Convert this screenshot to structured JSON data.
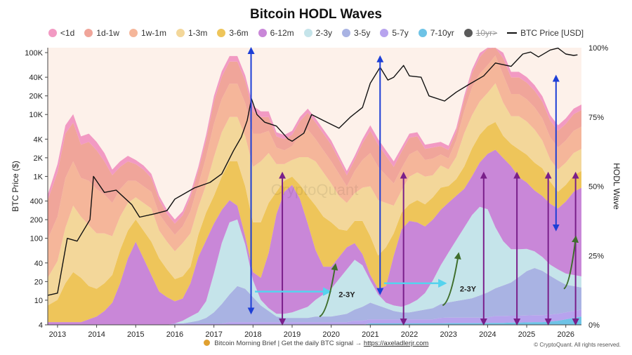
{
  "chart_data": {
    "type": "area",
    "title": "Bitcoin HODL Waves",
    "watermark": "CryptoQuant",
    "left_axis": {
      "label": "BTC Price ($)",
      "scale": "log",
      "ticks": [
        "4",
        "10",
        "20",
        "40",
        "100",
        "200",
        "400",
        "1K",
        "2K",
        "4K",
        "10K",
        "20K",
        "40K",
        "100K"
      ],
      "tick_values": [
        4,
        10,
        20,
        40,
        100,
        200,
        400,
        1000,
        2000,
        4000,
        10000,
        20000,
        40000,
        100000
      ],
      "range": [
        4,
        120000
      ]
    },
    "right_axis": {
      "label": "HODL Wave",
      "ticks": [
        "0%",
        "25%",
        "50%",
        "75%",
        "100%"
      ],
      "tick_values": [
        0,
        25,
        50,
        75,
        100
      ],
      "range": [
        0,
        100
      ]
    },
    "x_axis": {
      "ticks": [
        "2013",
        "2014",
        "2015",
        "2016",
        "2017",
        "2018",
        "2019",
        "2020",
        "2021",
        "2022",
        "2023",
        "2024",
        "2025",
        "2026"
      ],
      "tick_values": [
        2013,
        2014,
        2015,
        2016,
        2017,
        2018,
        2019,
        2020,
        2021,
        2022,
        2023,
        2024,
        2025,
        2026
      ],
      "range": [
        2012.75,
        2026.4
      ]
    },
    "legend_placement": "top",
    "legend": [
      {
        "label": "<1d",
        "color": "#f29ac3"
      },
      {
        "label": "1d-1w",
        "color": "#f0a59a"
      },
      {
        "label": "1w-1m",
        "color": "#f5b69a"
      },
      {
        "label": "1-3m",
        "color": "#f3d79a"
      },
      {
        "label": "3-6m",
        "color": "#eec55a"
      },
      {
        "label": "6-12m",
        "color": "#c987d8"
      },
      {
        "label": "2-3y",
        "color": "#c5e4ea"
      },
      {
        "label": "3-5y",
        "color": "#a9b3e3"
      },
      {
        "label": "5-7y",
        "color": "#b7a3ee"
      },
      {
        "label": "7-10yr",
        "color": "#6ec3e6"
      },
      {
        "label": "10yr>",
        "color": "#5a5a5a",
        "strikethrough": true
      },
      {
        "label": "BTC Price [USD]",
        "color": "#111111",
        "line": true
      }
    ],
    "price_series": {
      "name": "BTC Price [USD]",
      "color": "#111111",
      "x": [
        2012.75,
        2013.0,
        2013.25,
        2013.5,
        2013.83,
        2013.92,
        2014.2,
        2014.5,
        2014.9,
        2015.1,
        2015.5,
        2015.8,
        2016.0,
        2016.5,
        2016.9,
        2017.2,
        2017.5,
        2017.7,
        2017.85,
        2017.96,
        2018.1,
        2018.3,
        2018.6,
        2018.9,
        2019.0,
        2019.3,
        2019.5,
        2019.8,
        2020.2,
        2020.5,
        2020.8,
        2021.0,
        2021.25,
        2021.45,
        2021.6,
        2021.85,
        2022.0,
        2022.3,
        2022.5,
        2022.9,
        2023.2,
        2023.5,
        2023.9,
        2024.2,
        2024.6,
        2024.9,
        2025.1,
        2025.3,
        2025.6,
        2025.8,
        2026.0,
        2026.2,
        2026.3
      ],
      "values": [
        12,
        13,
        100,
        90,
        200,
        1000,
        550,
        600,
        350,
        220,
        250,
        280,
        430,
        650,
        800,
        1100,
        2600,
        4300,
        8000,
        18000,
        10000,
        7500,
        6500,
        4000,
        3700,
        5000,
        10000,
        8000,
        6000,
        9200,
        13000,
        32000,
        58000,
        36000,
        40000,
        62000,
        42000,
        40000,
        20000,
        16500,
        23000,
        30000,
        42000,
        68000,
        60000,
        95000,
        102000,
        85000,
        110000,
        118000,
        95000,
        90000,
        92000
      ]
    },
    "hodl_bands": {
      "x": [
        2012.75,
        2013.0,
        2013.2,
        2013.4,
        2013.6,
        2013.8,
        2014.0,
        2014.2,
        2014.4,
        2014.6,
        2014.8,
        2015.0,
        2015.2,
        2015.4,
        2015.6,
        2015.8,
        2016.0,
        2016.2,
        2016.4,
        2016.6,
        2016.8,
        2017.0,
        2017.2,
        2017.4,
        2017.6,
        2017.8,
        2018.0,
        2018.2,
        2018.4,
        2018.6,
        2018.8,
        2019.0,
        2019.2,
        2019.4,
        2019.6,
        2019.8,
        2020.0,
        2020.2,
        2020.4,
        2020.6,
        2020.8,
        2021.0,
        2021.2,
        2021.4,
        2021.6,
        2021.8,
        2022.0,
        2022.2,
        2022.4,
        2022.6,
        2022.8,
        2023.0,
        2023.2,
        2023.4,
        2023.6,
        2023.8,
        2024.0,
        2024.2,
        2024.4,
        2024.6,
        2024.8,
        2025.0,
        2025.2,
        2025.4,
        2025.6,
        2025.8,
        2026.0,
        2026.2,
        2026.4
      ],
      "series": [
        {
          "name": "7-10yr",
          "values": [
            0,
            0,
            0,
            0,
            0,
            0,
            0,
            0,
            0,
            0,
            0,
            0,
            0,
            0,
            0,
            0,
            0,
            0,
            0,
            0,
            0,
            0,
            0,
            0,
            0,
            0,
            0,
            0,
            0,
            0,
            0,
            0,
            0,
            0,
            0,
            0,
            0,
            0,
            0,
            0,
            0,
            0.5,
            0.5,
            0.5,
            0.5,
            0.5,
            0.5,
            0.5,
            0.5,
            0.5,
            0.5,
            0.6,
            0.6,
            0.6,
            0.6,
            0.6,
            0.7,
            0.7,
            0.7,
            0.8,
            0.8,
            0.9,
            1,
            1,
            1.2,
            1.5,
            2,
            2.5,
            3
          ]
        },
        {
          "name": "5-7y",
          "values": [
            0,
            0,
            0,
            0,
            0,
            0,
            0,
            0,
            0,
            0,
            0,
            0,
            0,
            0,
            0,
            0,
            0.5,
            0.5,
            0.5,
            0.5,
            0.5,
            0.5,
            0.5,
            1,
            1,
            1,
            1,
            1,
            1,
            1,
            1,
            1,
            1,
            1,
            1,
            1,
            1,
            1,
            1,
            1.5,
            1.5,
            1.5,
            1.5,
            1.5,
            1.5,
            1.5,
            1.5,
            1.5,
            1.5,
            1.5,
            2,
            2,
            2,
            2,
            2,
            2,
            2,
            2.5,
            2.5,
            2.5,
            2.5,
            2.5,
            2.5,
            2.5,
            2.5,
            2.5,
            2.5,
            2.5,
            2.5
          ]
        },
        {
          "name": "3-5y",
          "values": [
            0,
            0,
            0,
            0,
            0,
            0,
            0,
            0,
            0,
            0,
            0,
            0,
            0,
            0,
            0,
            0,
            0,
            0,
            0.5,
            1,
            2,
            4,
            7,
            10,
            13,
            12,
            9,
            6,
            4,
            2,
            1.5,
            1.5,
            1.5,
            1.5,
            2,
            2,
            2,
            2.5,
            3,
            4,
            5,
            6,
            5,
            4,
            3,
            2.5,
            2.5,
            3,
            3.5,
            4,
            5,
            5.5,
            6,
            6.5,
            7,
            8,
            9,
            10,
            11,
            12,
            14,
            16,
            17,
            16,
            14,
            12,
            10,
            9,
            8
          ]
        },
        {
          "name": "2-3y",
          "values": [
            0,
            0,
            0,
            0,
            0,
            0,
            0,
            0,
            0,
            0,
            0,
            0,
            0,
            0,
            0,
            0,
            0,
            1,
            2,
            3,
            6,
            14,
            22,
            26,
            24,
            16,
            6,
            2,
            1,
            1,
            1.5,
            2,
            3,
            4,
            6,
            8,
            10,
            13,
            16,
            18,
            15,
            8,
            4,
            2,
            2,
            2,
            3,
            4,
            6,
            10,
            14,
            18,
            22,
            26,
            30,
            32,
            30,
            22,
            16,
            12,
            10,
            8,
            6,
            5,
            4,
            4,
            4,
            4,
            4
          ]
        },
        {
          "name": "6-12m",
          "values": [
            1,
            1,
            1,
            1,
            1,
            2,
            3,
            5,
            8,
            15,
            24,
            30,
            24,
            18,
            12,
            10,
            8,
            8,
            12,
            20,
            22,
            18,
            12,
            8,
            5,
            3,
            3,
            8,
            20,
            36,
            44,
            46,
            40,
            30,
            18,
            10,
            8,
            8,
            8,
            6,
            4,
            2,
            2,
            6,
            18,
            28,
            30,
            28,
            24,
            22,
            20,
            18,
            16,
            14,
            14,
            16,
            20,
            28,
            30,
            30,
            26,
            24,
            22,
            22,
            22,
            22,
            26,
            30,
            32
          ]
        },
        {
          "name": "3-6m",
          "values": [
            6,
            8,
            14,
            18,
            16,
            12,
            10,
            10,
            10,
            12,
            10,
            8,
            10,
            12,
            12,
            10,
            8,
            8,
            6,
            8,
            10,
            10,
            12,
            14,
            16,
            18,
            18,
            20,
            18,
            8,
            4,
            3,
            5,
            10,
            16,
            18,
            16,
            10,
            6,
            8,
            12,
            14,
            12,
            14,
            8,
            6,
            6,
            8,
            8,
            8,
            8,
            6,
            6,
            8,
            10,
            10,
            10,
            10,
            8,
            8,
            10,
            10,
            10,
            10,
            8,
            6,
            6,
            6,
            6
          ]
        },
        {
          "name": "1-3m",
          "values": [
            10,
            14,
            20,
            24,
            22,
            22,
            20,
            18,
            14,
            12,
            10,
            8,
            10,
            12,
            10,
            10,
            10,
            12,
            12,
            10,
            10,
            14,
            16,
            16,
            16,
            18,
            20,
            22,
            18,
            10,
            6,
            6,
            10,
            14,
            16,
            16,
            14,
            12,
            10,
            10,
            12,
            18,
            20,
            16,
            10,
            8,
            10,
            10,
            10,
            8,
            8,
            6,
            8,
            12,
            12,
            12,
            12,
            14,
            12,
            10,
            12,
            12,
            12,
            10,
            8,
            8,
            8,
            8,
            8
          ]
        },
        {
          "name": "1w-1m",
          "values": [
            14,
            16,
            18,
            16,
            14,
            16,
            16,
            14,
            12,
            10,
            8,
            6,
            6,
            6,
            6,
            6,
            6,
            6,
            8,
            8,
            10,
            12,
            12,
            12,
            12,
            12,
            12,
            10,
            8,
            6,
            5,
            5,
            8,
            10,
            8,
            8,
            8,
            8,
            6,
            8,
            10,
            12,
            12,
            10,
            8,
            8,
            8,
            8,
            6,
            6,
            4,
            4,
            6,
            8,
            10,
            10,
            10,
            10,
            10,
            8,
            8,
            8,
            8,
            8,
            8,
            8,
            8,
            8,
            8
          ]
        },
        {
          "name": "1d-1w",
          "values": [
            14,
            16,
            16,
            14,
            12,
            14,
            14,
            12,
            10,
            8,
            7,
            6,
            6,
            5,
            5,
            4,
            4,
            4,
            5,
            5,
            6,
            8,
            8,
            8,
            8,
            8,
            8,
            6,
            5,
            4,
            4,
            4,
            5,
            6,
            6,
            6,
            6,
            5,
            4,
            4,
            6,
            8,
            8,
            7,
            6,
            6,
            6,
            5,
            4,
            4,
            3,
            3,
            3,
            4,
            5,
            6,
            6,
            6,
            6,
            6,
            6,
            6,
            6,
            6,
            6,
            6,
            6,
            6,
            6
          ]
        },
        {
          "name": "<1d",
          "values": [
            2,
            3,
            3,
            3,
            3,
            3,
            3,
            3,
            2,
            2,
            2,
            1.5,
            1.5,
            1.5,
            1.5,
            1.5,
            1.5,
            1.5,
            1.5,
            1.5,
            2,
            2,
            2,
            2,
            2,
            2,
            2,
            2,
            2,
            1.5,
            1.5,
            1.5,
            1.5,
            1.5,
            1.5,
            1.5,
            1.5,
            1.5,
            1.5,
            1.5,
            1.5,
            2,
            2,
            2,
            2,
            1.5,
            1.5,
            1.5,
            1.5,
            1.5,
            1.5,
            1.5,
            1.5,
            1.5,
            1.5,
            1.5,
            2,
            2,
            2,
            2,
            2,
            2,
            2,
            2,
            2,
            2,
            2,
            2,
            2
          ]
        }
      ]
    },
    "annotations": [
      {
        "text": "2-3Y",
        "x": 2020.4,
        "y_pct": 10
      },
      {
        "text": "2-3Y",
        "x": 2023.5,
        "y_pct": 12
      }
    ]
  },
  "footer": {
    "prefix": "Bitcoin Morning Brief | Get the daily BTC signal →",
    "link_text": "https://axeladlerjr.com"
  },
  "copyright": "© CryptoQuant. All rights reserved."
}
